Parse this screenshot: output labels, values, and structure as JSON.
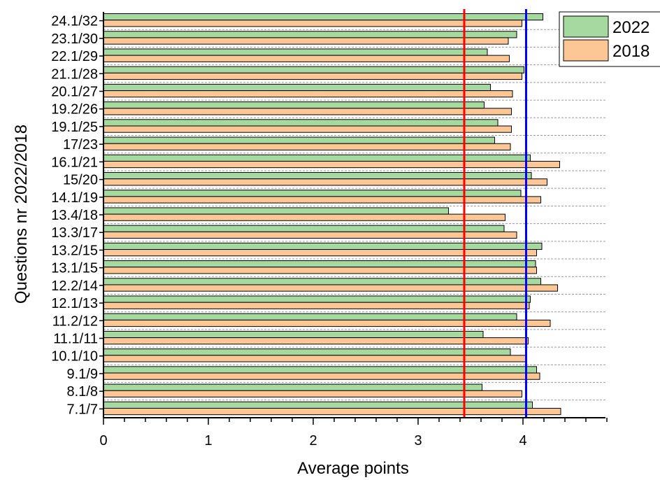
{
  "chart_data": {
    "type": "bar",
    "orientation": "horizontal",
    "title": "",
    "xlabel": "Average points",
    "ylabel": "Questions nr 2022/2018",
    "xlim": [
      0,
      4.8
    ],
    "x_ticks": [
      "0",
      "1",
      "2",
      "3",
      "4"
    ],
    "grid": "dashed horizontal",
    "legend_position": "top-right",
    "categories": [
      "24.1/32",
      "23.1/30",
      "22.1/29",
      "21.1/28",
      "20.1/27",
      "19.2/26",
      "19.1/25",
      "17/23",
      "16.1/21",
      "15/20",
      "14.1/19",
      "13.4/18",
      "13.3/17",
      "13.2/15",
      "13.1/15",
      "12.2/14",
      "12.1/13",
      "11.2/12",
      "11.1/11",
      "10.1/10",
      "9.1/9",
      "8.1/8",
      "7.1/7"
    ],
    "series": [
      {
        "name": "2022",
        "color": "#a6d9a0",
        "values": [
          4.19,
          3.94,
          3.66,
          4.01,
          3.69,
          3.63,
          3.76,
          3.73,
          4.07,
          4.08,
          3.98,
          3.29,
          3.82,
          4.18,
          4.12,
          4.17,
          4.07,
          3.94,
          3.62,
          3.88,
          4.13,
          3.61,
          4.09
        ]
      },
      {
        "name": "2018",
        "color": "#fcc794",
        "values": [
          3.99,
          3.86,
          3.87,
          3.99,
          3.9,
          3.89,
          3.89,
          3.88,
          4.35,
          4.23,
          4.17,
          3.83,
          3.94,
          4.13,
          4.13,
          4.33,
          4.06,
          4.26,
          4.05,
          4.03,
          4.16,
          3.99,
          4.36
        ]
      }
    ],
    "reference_lines": [
      {
        "value": 3.44,
        "color": "#ff0000"
      },
      {
        "value": 4.03,
        "color": "#0000ff"
      }
    ]
  }
}
